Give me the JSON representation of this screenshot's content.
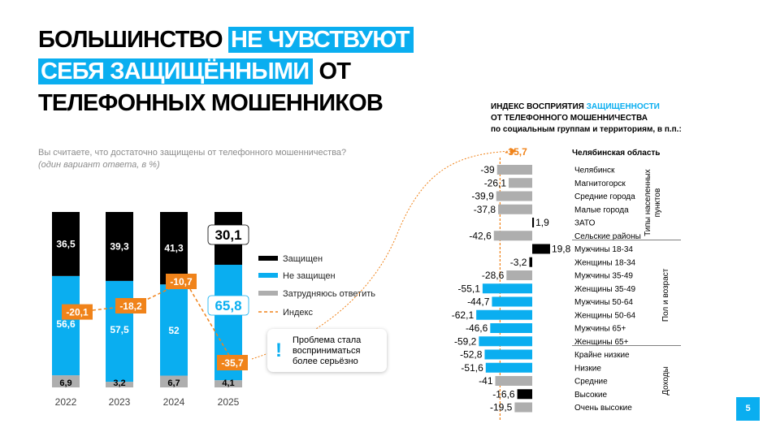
{
  "title": {
    "line1_plain": "БОЛЬШИНСТВО",
    "line1_hl": "НЕ ЧУВСТВУЮТ",
    "line2_hl": "СЕБЯ ЗАЩИЩЁННЫМИ",
    "line2_plain": "ОТ",
    "line3": "ТЕЛЕФОННЫХ МОШЕННИКОВ"
  },
  "question": {
    "text": "Вы считаете, что достаточно защищены от телефонного мошенничества?",
    "note": "(один вариант ответа, в %)"
  },
  "callout": {
    "icon": "!",
    "text_lines": [
      "Проблема стала",
      "восприниматься",
      "более серьёзно"
    ]
  },
  "right_title": {
    "line1_plain": "ИНДЕКС ВОСПРИЯТИЯ ",
    "line1_hl": "ЗАЩИЩЕННОСТИ",
    "line2": "ОТ ТЕЛЕФОННОГО МОШЕННИЧЕСТВА",
    "line3": "по социальным группам и территориям, в п.п.:"
  },
  "page_number": "5",
  "colors": {
    "black": "#000000",
    "blue": "#0aaef0",
    "gray": "#aeaeae",
    "orange": "#f0831a"
  },
  "chart_data": [
    {
      "type": "bar",
      "stacked": true,
      "categories": [
        "2022",
        "2023",
        "2024",
        "2025"
      ],
      "series": [
        {
          "name": "Затрудняюсь ответить",
          "values": [
            6.9,
            3.2,
            6.7,
            4.1
          ],
          "labels": [
            "6,9",
            "3,2",
            "6,7",
            "4,1"
          ]
        },
        {
          "name": "Не защищен",
          "values": [
            56.6,
            57.5,
            52,
            65.8
          ],
          "labels": [
            "56,6",
            "57,5",
            "52",
            "65,8"
          ]
        },
        {
          "name": "Защищен",
          "values": [
            36.5,
            39.3,
            41.3,
            30.1
          ],
          "labels": [
            "36,5",
            "39,3",
            "41,3",
            "30,1"
          ]
        }
      ],
      "index": {
        "name": "Индекс",
        "values": [
          -20.1,
          -18.2,
          -10.7,
          -35.7
        ],
        "labels": [
          "-20,1",
          "-18,2",
          "-10,7",
          "-35,7"
        ]
      },
      "legend": [
        {
          "name": "Защищен",
          "key": "black"
        },
        {
          "name": "Не защищен",
          "key": "blue"
        },
        {
          "name": "Затрудняюсь ответить",
          "key": "gray"
        },
        {
          "name": "Индекс",
          "key": "orange"
        }
      ],
      "legend_position": "right",
      "ylim": [
        0,
        100
      ]
    },
    {
      "type": "bar",
      "orientation": "horizontal",
      "title": "ИНДЕКС ВОСПРИЯТИЯ ЗАЩИЩЕННОСТИ ОТ ТЕЛЕФОННОГО МОШЕННИЧЕСТВА",
      "reference": {
        "label": "Челябинская область",
        "value": -35.7,
        "value_label": "-35,7"
      },
      "groups": [
        {
          "name": "Типы населенных пунктов",
          "items": [
            {
              "label": "Челябинск",
              "value": -39,
              "value_label": "-39",
              "color": "gray"
            },
            {
              "label": "Магнитогорск",
              "value": -26.1,
              "value_label": "-26,1",
              "color": "gray"
            },
            {
              "label": "Средние города",
              "value": -39.9,
              "value_label": "-39,9",
              "color": "gray"
            },
            {
              "label": "Малые города",
              "value": -37.8,
              "value_label": "-37,8",
              "color": "gray"
            },
            {
              "label": "ЗАТО",
              "value": 1.9,
              "value_label": "1,9",
              "color": "black"
            },
            {
              "label": "Сельские районы",
              "value": -42.6,
              "value_label": "-42,6",
              "color": "gray"
            }
          ]
        },
        {
          "name": "Пол и возраст",
          "items": [
            {
              "label": "Мужчины 18-34",
              "value": 19.8,
              "value_label": "19,8",
              "color": "black"
            },
            {
              "label": "Женщины 18-34",
              "value": -3.2,
              "value_label": "-3,2",
              "color": "black"
            },
            {
              "label": "Мужчины 35-49",
              "value": -28.6,
              "value_label": "-28,6",
              "color": "gray"
            },
            {
              "label": "Женщины 35-49",
              "value": -55.1,
              "value_label": "-55,1",
              "color": "blue"
            },
            {
              "label": "Мужчины 50-64",
              "value": -44.7,
              "value_label": "-44,7",
              "color": "blue"
            },
            {
              "label": "Женщины 50-64",
              "value": -62.1,
              "value_label": "-62,1",
              "color": "blue"
            },
            {
              "label": "Мужчины 65+",
              "value": -46.6,
              "value_label": "-46,6",
              "color": "blue"
            },
            {
              "label": "Женщины 65+",
              "value": -59.2,
              "value_label": "-59,2",
              "color": "blue"
            }
          ]
        },
        {
          "name": "Доходы",
          "items": [
            {
              "label": "Крайне низкие",
              "value": -52.8,
              "value_label": "-52,8",
              "color": "blue"
            },
            {
              "label": "Низкие",
              "value": -51.6,
              "value_label": "-51,6",
              "color": "blue"
            },
            {
              "label": "Средние",
              "value": -41,
              "value_label": "-41",
              "color": "gray"
            },
            {
              "label": "Высокие",
              "value": -16.6,
              "value_label": "-16,6",
              "color": "black"
            },
            {
              "label": "Очень высокие",
              "value": -19.5,
              "value_label": "-19,5",
              "color": "gray"
            }
          ]
        }
      ]
    }
  ]
}
